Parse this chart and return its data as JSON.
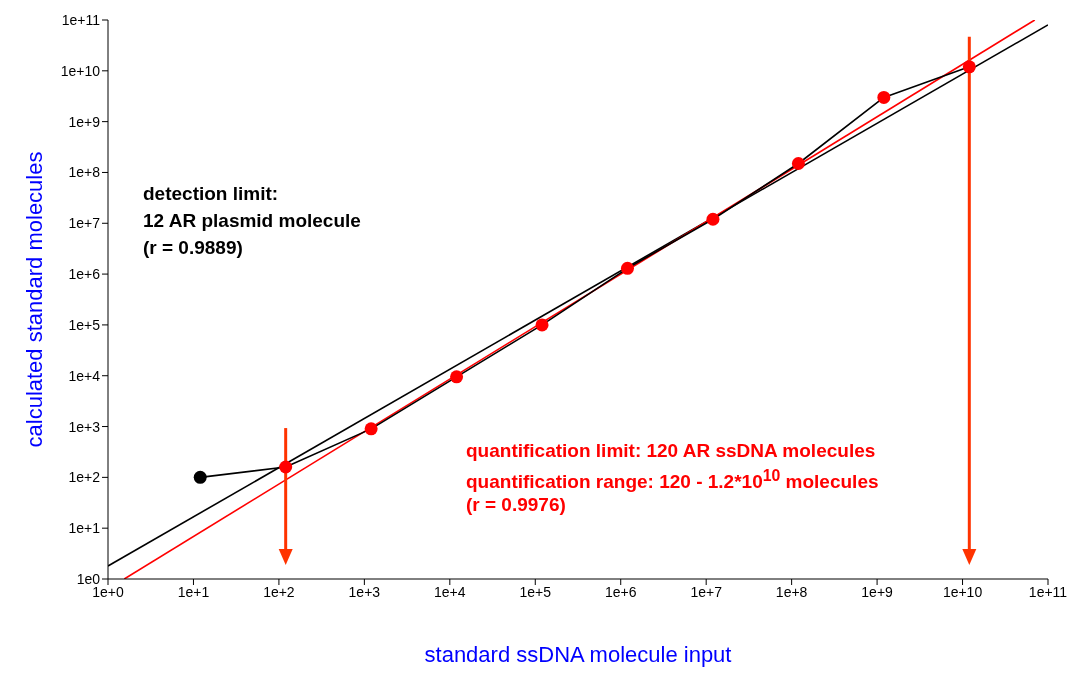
{
  "chart_data": {
    "type": "line",
    "xlabel": "standard ssDNA molecule input",
    "ylabel": "calculated standard molecules",
    "log": "xy",
    "xlim": [
      1,
      100000000000
    ],
    "ylim": [
      1,
      100000000000
    ],
    "xticks": [
      {
        "value": 1,
        "label": "1e+0"
      },
      {
        "value": 10,
        "label": "1e+1"
      },
      {
        "value": 100,
        "label": "1e+2"
      },
      {
        "value": 1000,
        "label": "1e+3"
      },
      {
        "value": 10000,
        "label": "1e+4"
      },
      {
        "value": 100000,
        "label": "1e+5"
      },
      {
        "value": 1000000,
        "label": "1e+6"
      },
      {
        "value": 10000000,
        "label": "1e+7"
      },
      {
        "value": 100000000,
        "label": "1e+8"
      },
      {
        "value": 1000000000,
        "label": "1e+9"
      },
      {
        "value": 10000000000,
        "label": "1e+10"
      },
      {
        "value": 100000000000,
        "label": "1e+11"
      }
    ],
    "yticks": [
      {
        "value": 1,
        "label": "1e0"
      },
      {
        "value": 10,
        "label": "1e+1"
      },
      {
        "value": 100,
        "label": "1e+2"
      },
      {
        "value": 1000,
        "label": "1e+3"
      },
      {
        "value": 10000,
        "label": "1e+4"
      },
      {
        "value": 100000,
        "label": "1e+5"
      },
      {
        "value": 1000000,
        "label": "1e+6"
      },
      {
        "value": 10000000,
        "label": "1e+7"
      },
      {
        "value": 100000000,
        "label": "1e+8"
      },
      {
        "value": 1000000000,
        "label": "1e+9"
      },
      {
        "value": 10000000000,
        "label": "1e+10"
      },
      {
        "value": 100000000000,
        "label": "1e+11"
      }
    ],
    "series": [
      {
        "color": "#000000",
        "marker": "none",
        "x": [
          1,
          100000000000
        ],
        "values": [
          1.8,
          80000000000
        ]
      },
      {
        "color": "#ff0000",
        "marker": "none",
        "x": [
          1.55,
          70000000000
        ],
        "values": [
          1,
          100000000000
        ]
      },
      {
        "color": "#000000",
        "marker": "circle",
        "colors": [
          "#000000",
          "#ff0000",
          "#ff0000",
          "#ff0000",
          "#ff0000",
          "#ff0000",
          "#ff0000",
          "#ff0000",
          "#ff0000",
          "#ff0000"
        ],
        "x": [
          12,
          120,
          1200,
          12000,
          120000,
          1200000,
          12000000,
          120000000,
          1200000000,
          12000000000
        ],
        "values": [
          100,
          160,
          900,
          9500,
          100000,
          1300000,
          12000000,
          150000000,
          3000000000,
          12000000000
        ]
      }
    ],
    "ref_lines": [
      {
        "axis": "x",
        "value": 120,
        "color": "#ff3300"
      },
      {
        "axis": "x",
        "value": 12000000000,
        "color": "#ff3300"
      }
    ],
    "annotations": [
      "detection limit:",
      "12 AR plasmid molecule",
      "(r = 0.9889)",
      "quantification limit: 120 AR ssDNA molecules",
      "quantification range: 120 - 1.2*10$^{10}$ molecules",
      "(r = 0.9976)"
    ]
  }
}
